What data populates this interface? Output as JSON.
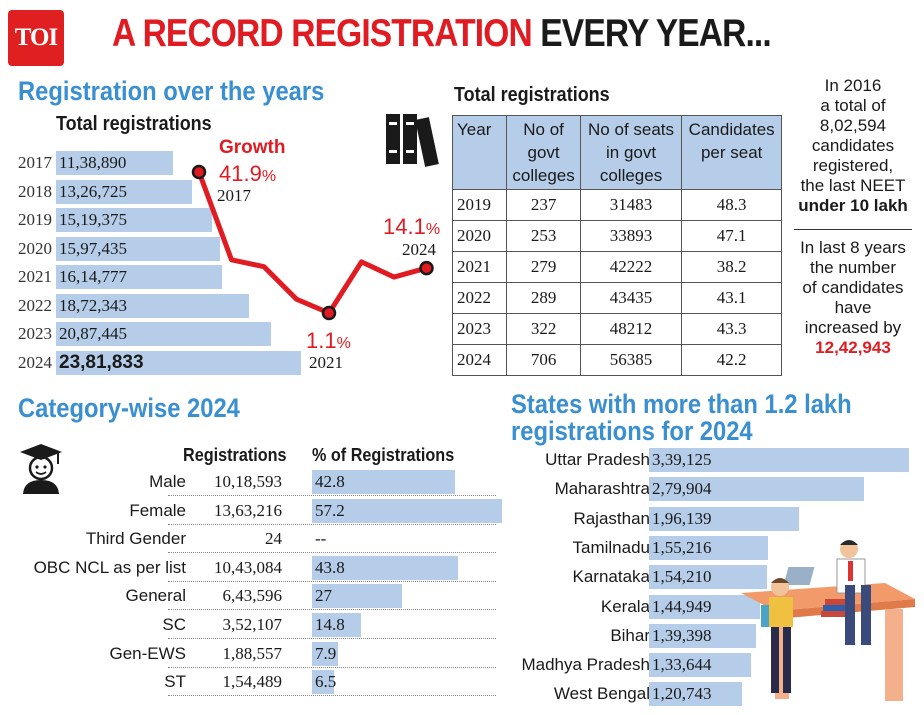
{
  "header": {
    "logo": "TOI",
    "headline_red": "A RECORD REGISTRATION",
    "headline_black": "EVERY YEAR..."
  },
  "registration": {
    "section_title": "Registration over the years",
    "subtitle": "Total registrations",
    "growth_label": "Growth",
    "annotations": [
      {
        "pct": "41.9",
        "unit": "%",
        "year": "2017"
      },
      {
        "pct": "1.1",
        "unit": "%",
        "year": "2021"
      },
      {
        "pct": "14.1",
        "unit": "%",
        "year": "2024"
      }
    ]
  },
  "table": {
    "title": "Total registrations",
    "headers": [
      "Year",
      "No of govt colleges",
      "No of seats in govt colleges",
      "Candidates per seat"
    ],
    "rows": [
      [
        "2019",
        "237",
        "31483",
        "48.3"
      ],
      [
        "2020",
        "253",
        "33893",
        "47.1"
      ],
      [
        "2021",
        "279",
        "42222",
        "38.2"
      ],
      [
        "2022",
        "289",
        "43435",
        "43.1"
      ],
      [
        "2023",
        "322",
        "48212",
        "43.3"
      ],
      [
        "2024",
        "706",
        "56385",
        "42.2"
      ]
    ]
  },
  "notes": {
    "note1_line1": "In 2016",
    "note1_line2": "a total of",
    "note1_line3": "8,02,594",
    "note1_line4": "candidates",
    "note1_line5": "registered,",
    "note1_line6": "the last NEET",
    "note1_line7": "under 10 lakh",
    "note2_line1": "In last 8 years",
    "note2_line2": "the number",
    "note2_line3": "of candidates",
    "note2_line4": "have",
    "note2_line5": "increased by",
    "note2_line6": "12,42,943"
  },
  "category": {
    "section_title": "Category-wise 2024",
    "col_registrations": "Registrations",
    "col_percent": "% of Registrations"
  },
  "states": {
    "section_title_line1": "States with more than 1.2 lakh",
    "section_title_line2": "registrations for 2024"
  },
  "colors": {
    "accent_blue": "#3a8fd0",
    "bar_blue": "#b5cde9",
    "red": "#e11b22"
  },
  "chart_data": [
    {
      "type": "bar",
      "title": "Total registrations",
      "orientation": "horizontal",
      "categories": [
        "2017",
        "2018",
        "2019",
        "2020",
        "2021",
        "2022",
        "2023",
        "2024"
      ],
      "values": [
        1138890,
        1326725,
        1519375,
        1597435,
        1614777,
        1872343,
        2087445,
        2381833
      ],
      "labels": [
        "11,38,890",
        "13,26,725",
        "15,19,375",
        "15,97,435",
        "16,14,777",
        "18,72,343",
        "20,87,445",
        "23,81,833"
      ]
    },
    {
      "type": "line",
      "title": "Growth",
      "x": [
        "2017",
        "2018",
        "2019",
        "2020",
        "2021",
        "2022",
        "2023",
        "2024"
      ],
      "values": [
        41.9,
        16.5,
        14.5,
        5.1,
        1.1,
        15.9,
        11.5,
        14.1
      ]
    },
    {
      "type": "bar",
      "title": "Category-wise 2024",
      "orientation": "horizontal",
      "categories": [
        "Male",
        "Female",
        "Third Gender",
        "OBC NCL as per list",
        "General",
        "SC",
        "Gen-EWS",
        "ST"
      ],
      "registrations": [
        "10,18,593",
        "13,63,216",
        "24",
        "10,43,084",
        "6,43,596",
        "3,52,107",
        "1,88,557",
        "1,54,489"
      ],
      "percent_labels": [
        "42.8",
        "57.2",
        "--",
        "43.8",
        "27",
        "14.8",
        "7.9",
        "6.5"
      ],
      "values": [
        42.8,
        57.2,
        0,
        43.8,
        27,
        14.8,
        7.9,
        6.5
      ]
    },
    {
      "type": "bar",
      "title": "States with more than 1.2 lakh registrations for 2024",
      "orientation": "horizontal",
      "categories": [
        "Uttar Pradesh",
        "Maharashtra",
        "Rajasthan",
        "Tamilnadu",
        "Karnataka",
        "Kerala",
        "Bihar",
        "Madhya Pradesh",
        "West Bengal"
      ],
      "values": [
        339125,
        279904,
        196139,
        155216,
        154210,
        144949,
        139398,
        133644,
        120743
      ],
      "labels": [
        "3,39,125",
        "2,79,904",
        "1,96,139",
        "1,55,216",
        "1,54,210",
        "1,44,949",
        "1,39,398",
        "1,33,644",
        "1,20,743"
      ]
    }
  ]
}
